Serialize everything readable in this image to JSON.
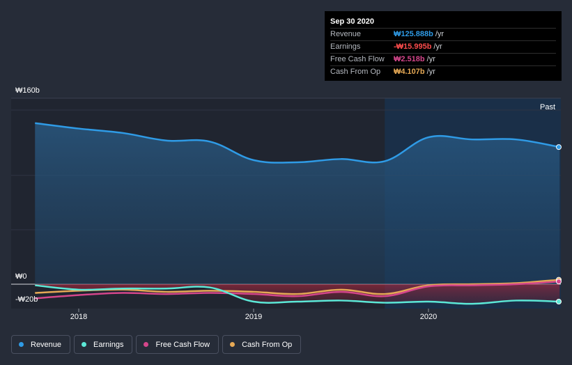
{
  "chart_data": {
    "type": "area",
    "currency": "₩",
    "y_unit": "b",
    "ylim": [
      -20,
      160
    ],
    "y_labels": [
      {
        "value": 160,
        "text": "₩160b"
      },
      {
        "value": 0,
        "text": "₩0"
      },
      {
        "value": -20,
        "text": "-₩20b"
      }
    ],
    "x_range": [
      2017.5,
      2020.83
    ],
    "x_ticks": [
      {
        "value": 2018,
        "text": "2018"
      },
      {
        "value": 2019,
        "text": "2019"
      },
      {
        "value": 2020,
        "text": "2020"
      }
    ],
    "past_label": "Past",
    "past_start": 2019.75,
    "series": [
      {
        "name": "Revenue",
        "color": "#2f9be6",
        "fill": true,
        "points": [
          [
            2017.75,
            148
          ],
          [
            2018.0,
            143
          ],
          [
            2018.25,
            139
          ],
          [
            2018.5,
            132
          ],
          [
            2018.75,
            131
          ],
          [
            2019.0,
            114
          ],
          [
            2019.25,
            112
          ],
          [
            2019.5,
            115
          ],
          [
            2019.75,
            113
          ],
          [
            2020.0,
            135
          ],
          [
            2020.25,
            133
          ],
          [
            2020.5,
            133
          ],
          [
            2020.75,
            126
          ]
        ]
      },
      {
        "name": "Earnings",
        "color": "#5ce8d7",
        "fill": false,
        "points": [
          [
            2017.75,
            -1
          ],
          [
            2018.0,
            -5
          ],
          [
            2018.25,
            -4
          ],
          [
            2018.5,
            -4
          ],
          [
            2018.75,
            -3
          ],
          [
            2019.0,
            -16
          ],
          [
            2019.25,
            -16
          ],
          [
            2019.5,
            -15
          ],
          [
            2019.75,
            -17
          ],
          [
            2020.0,
            -16
          ],
          [
            2020.25,
            -18
          ],
          [
            2020.5,
            -15
          ],
          [
            2020.75,
            -16
          ]
        ]
      },
      {
        "name": "Free Cash Flow",
        "color": "#d4468b",
        "fill": false,
        "points": [
          [
            2017.75,
            -13
          ],
          [
            2018.0,
            -10
          ],
          [
            2018.25,
            -8
          ],
          [
            2018.5,
            -9
          ],
          [
            2018.75,
            -8
          ],
          [
            2019.0,
            -9
          ],
          [
            2019.25,
            -11
          ],
          [
            2019.5,
            -7
          ],
          [
            2019.75,
            -11
          ],
          [
            2020.0,
            -2
          ],
          [
            2020.25,
            -1
          ],
          [
            2020.5,
            0
          ],
          [
            2020.75,
            2.5
          ]
        ]
      },
      {
        "name": "Cash From Op",
        "color": "#e6a955",
        "fill": false,
        "points": [
          [
            2017.75,
            -8
          ],
          [
            2018.0,
            -6
          ],
          [
            2018.25,
            -5
          ],
          [
            2018.5,
            -7
          ],
          [
            2018.75,
            -6
          ],
          [
            2019.0,
            -7
          ],
          [
            2019.25,
            -9
          ],
          [
            2019.5,
            -5
          ],
          [
            2019.75,
            -9
          ],
          [
            2020.0,
            -1
          ],
          [
            2020.25,
            0
          ],
          [
            2020.5,
            1
          ],
          [
            2020.75,
            4.1
          ]
        ]
      }
    ]
  },
  "tooltip": {
    "date": "Sep 30 2020",
    "rows": [
      {
        "label": "Revenue",
        "value": "₩125.888b",
        "unit": "/yr",
        "color": "#2f9be6"
      },
      {
        "label": "Earnings",
        "value": "-₩15.995b",
        "unit": "/yr",
        "color": "#ff4d4d"
      },
      {
        "label": "Free Cash Flow",
        "value": "₩2.518b",
        "unit": "/yr",
        "color": "#d4468b"
      },
      {
        "label": "Cash From Op",
        "value": "₩4.107b",
        "unit": "/yr",
        "color": "#e6a955"
      }
    ]
  },
  "legend": [
    {
      "label": "Revenue",
      "color": "#2f9be6"
    },
    {
      "label": "Earnings",
      "color": "#5ce8d7"
    },
    {
      "label": "Free Cash Flow",
      "color": "#d4468b"
    },
    {
      "label": "Cash From Op",
      "color": "#e6a955"
    }
  ]
}
